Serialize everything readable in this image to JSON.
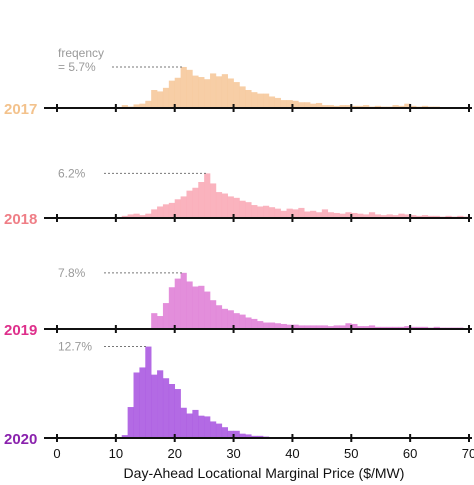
{
  "chart_data": {
    "type": "bar",
    "subtype": "stacked-ridge-histogram",
    "xlabel": "Day-Ahead Locational Marginal Price ($/MW)",
    "xlim": [
      0,
      70
    ],
    "x_ticks": [
      0,
      10,
      20,
      30,
      40,
      50,
      60,
      70
    ],
    "bin_width": 1,
    "bin_start": 0,
    "legend": "none",
    "grid": false,
    "series": [
      {
        "name": "2017",
        "color": "#f6c79a",
        "label_color": "#f3c28c",
        "annotation_lines": [
          "freqency",
          "= 5.7%"
        ],
        "peak_percent": 5.7,
        "values": [
          0,
          0,
          0,
          0,
          0,
          0,
          0,
          0,
          0,
          0,
          0,
          0.4,
          0.2,
          0.5,
          0.6,
          1.0,
          2.5,
          2.3,
          2.8,
          3.8,
          4.2,
          5.7,
          5.3,
          4.5,
          4.3,
          4.0,
          4.8,
          4.4,
          4.7,
          4.1,
          3.6,
          3.0,
          2.5,
          2.2,
          2.0,
          2.0,
          1.6,
          1.4,
          1.1,
          1.1,
          1.0,
          0.8,
          0.8,
          0.6,
          0.7,
          0.4,
          0.4,
          0.3,
          0.4,
          0.4,
          0.3,
          0.3,
          0.4,
          0.2,
          0.3,
          0.2,
          0.2,
          0.4,
          0.3,
          0.6,
          0.3,
          0.2,
          0.3,
          0.2,
          0.2,
          0.1,
          0.1,
          0,
          0,
          0
        ]
      },
      {
        "name": "2018",
        "color": "#f9a8b5",
        "label_color": "#ef7e86",
        "annotation_lines": [
          "6.2%"
        ],
        "peak_percent": 6.2,
        "values": [
          0,
          0,
          0,
          0,
          0,
          0,
          0,
          0,
          0,
          0,
          0,
          0.3,
          0.5,
          0.6,
          0.4,
          0.6,
          1.2,
          1.6,
          1.9,
          2.1,
          2.6,
          3.0,
          3.8,
          4.2,
          5.0,
          6.2,
          4.8,
          3.6,
          3.4,
          3.0,
          2.8,
          2.4,
          2.2,
          1.8,
          1.6,
          1.7,
          1.5,
          1.3,
          1.0,
          1.3,
          1.2,
          1.4,
          0.9,
          1.0,
          0.8,
          1.2,
          0.8,
          0.7,
          0.6,
          0.8,
          0.7,
          0.6,
          0.5,
          0.8,
          0.5,
          0.4,
          0.5,
          0.4,
          0.6,
          0.5,
          0.4,
          0.3,
          0.4,
          0.3,
          0.3,
          0.2,
          0.3,
          0.2,
          0.3,
          0.2
        ]
      },
      {
        "name": "2019",
        "color": "#df7ed6",
        "label_color": "#de2f8b",
        "annotation_lines": [
          "7.8%"
        ],
        "peak_percent": 7.8,
        "values": [
          0,
          0,
          0,
          0,
          0,
          0,
          0,
          0,
          0,
          0,
          0,
          0,
          0,
          0,
          0,
          0,
          2.2,
          1.8,
          3.6,
          5.8,
          7.0,
          7.8,
          6.6,
          5.9,
          6.0,
          5.2,
          4.0,
          3.3,
          2.8,
          2.6,
          2.2,
          2.0,
          1.6,
          1.4,
          1.1,
          0.9,
          0.9,
          0.8,
          0.7,
          0.6,
          0.6,
          0.5,
          0.5,
          0.5,
          0.5,
          0.5,
          0.4,
          0.5,
          0.5,
          0.8,
          0.7,
          0.4,
          0.4,
          0.5,
          0.3,
          0.3,
          0.3,
          0.3,
          0.3,
          0.4,
          0.3,
          0.3,
          0.3,
          0.2,
          0.3,
          0.2,
          0.2,
          0.2,
          0.2,
          0
        ]
      },
      {
        "name": "2020",
        "color": "#a855e0",
        "label_color": "#8a22ad",
        "annotation_lines": [
          "12.7%"
        ],
        "peak_percent": 12.7,
        "values": [
          0,
          0,
          0,
          0,
          0,
          0,
          0,
          0,
          0,
          0.1,
          0.1,
          0.4,
          4.3,
          9.1,
          9.8,
          12.7,
          8.8,
          9.4,
          8.3,
          7.5,
          6.8,
          4.2,
          3.4,
          3.9,
          3.1,
          3.0,
          2.3,
          2.0,
          1.5,
          1.0,
          1.0,
          0.6,
          0.5,
          0.3,
          0.3,
          0.2,
          0.1,
          0.1,
          0.1,
          0.1,
          0.1,
          0.1,
          0,
          0,
          0,
          0,
          0,
          0,
          0,
          0,
          0,
          0,
          0,
          0,
          0,
          0,
          0,
          0,
          0,
          0,
          0,
          0,
          0,
          0,
          0,
          0,
          0,
          0,
          0,
          0
        ]
      }
    ]
  }
}
